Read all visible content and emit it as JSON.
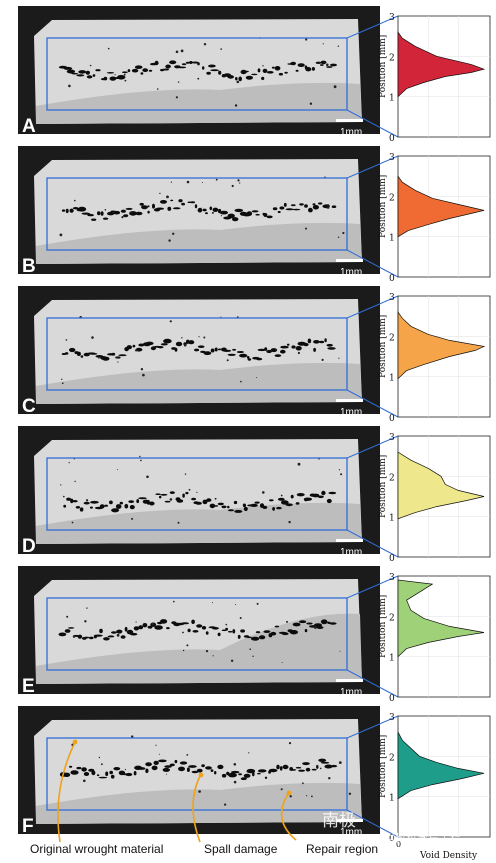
{
  "figure": {
    "panels": [
      {
        "letter": "A",
        "scale_label": "1mm",
        "hist_color": "#d2253a"
      },
      {
        "letter": "B",
        "scale_label": "1mm",
        "hist_color": "#ef6b33"
      },
      {
        "letter": "C",
        "scale_label": "1mm",
        "hist_color": "#f5a44a"
      },
      {
        "letter": "D",
        "scale_label": "1mm",
        "hist_color": "#efe78b"
      },
      {
        "letter": "E",
        "scale_label": "1mm",
        "hist_color": "#9fd178"
      },
      {
        "letter": "F",
        "scale_label": "1mm",
        "hist_color": "#1e9d8a"
      }
    ],
    "y_axis_label": "Position [mm]",
    "y_ticks": [
      "0",
      "1",
      "2",
      "3"
    ],
    "x_axis_label": "Void Density",
    "x_tick_zero": "0",
    "callouts": [
      "Original wrought material",
      "Spall damage",
      "Repair region"
    ],
    "watermark": {
      "left": "南极",
      "right": "材料科学与工程"
    }
  },
  "chart_data": [
    {
      "type": "area",
      "panel": "A",
      "x": [
        0,
        0.1,
        0.3,
        0.55,
        0.85,
        1.0,
        0.85,
        0.45,
        0.2,
        0.05,
        0
      ],
      "y": [
        1.0,
        1.2,
        1.35,
        1.5,
        1.6,
        1.68,
        1.8,
        2.0,
        2.25,
        2.45,
        2.6
      ],
      "ylim": [
        0,
        3
      ],
      "ylabel": "Position [mm]",
      "xlabel": "Void Density"
    },
    {
      "type": "area",
      "panel": "B",
      "x": [
        0,
        0.12,
        0.35,
        0.6,
        0.8,
        1.0,
        0.7,
        0.4,
        0.2,
        0.05,
        0
      ],
      "y": [
        1.0,
        1.15,
        1.3,
        1.45,
        1.55,
        1.65,
        1.8,
        1.95,
        2.15,
        2.35,
        2.5
      ],
      "ylim": [
        0,
        3
      ],
      "ylabel": "Position [mm]",
      "xlabel": "Void Density"
    },
    {
      "type": "area",
      "panel": "C",
      "x": [
        0,
        0.1,
        0.3,
        0.6,
        0.9,
        1.0,
        0.6,
        0.35,
        0.15,
        0.05,
        0
      ],
      "y": [
        0.95,
        1.15,
        1.3,
        1.5,
        1.65,
        1.75,
        1.9,
        2.05,
        2.25,
        2.45,
        2.6
      ],
      "ylim": [
        0,
        3
      ],
      "ylabel": "Position [mm]",
      "xlabel": "Void Density"
    },
    {
      "type": "area",
      "panel": "D",
      "x": [
        0,
        0.2,
        0.45,
        0.8,
        1.0,
        0.7,
        0.55,
        0.5,
        0.35,
        0.15,
        0
      ],
      "y": [
        0.95,
        1.1,
        1.25,
        1.4,
        1.5,
        1.65,
        1.8,
        2.0,
        2.2,
        2.4,
        2.6
      ],
      "ylim": [
        0,
        3
      ],
      "ylabel": "Position [mm]",
      "xlabel": "Void Density"
    },
    {
      "type": "area",
      "panel": "E",
      "x": [
        0,
        0.1,
        0.35,
        0.7,
        1.0,
        0.6,
        0.3,
        0.15,
        0.1,
        0.4,
        0
      ],
      "y": [
        1.0,
        1.2,
        1.35,
        1.5,
        1.6,
        1.75,
        1.95,
        2.15,
        2.4,
        2.8,
        2.9
      ],
      "ylim": [
        0,
        3
      ],
      "ylabel": "Position [mm]",
      "xlabel": "Void Density"
    },
    {
      "type": "area",
      "panel": "F",
      "x": [
        0,
        0.15,
        0.4,
        0.75,
        1.0,
        0.7,
        0.45,
        0.25,
        0.15,
        0.05,
        0
      ],
      "y": [
        0.95,
        1.15,
        1.3,
        1.45,
        1.58,
        1.7,
        1.85,
        2.0,
        2.2,
        2.4,
        2.6
      ],
      "ylim": [
        0,
        3
      ],
      "ylabel": "Position [mm]",
      "xlabel": "Void Density"
    }
  ]
}
